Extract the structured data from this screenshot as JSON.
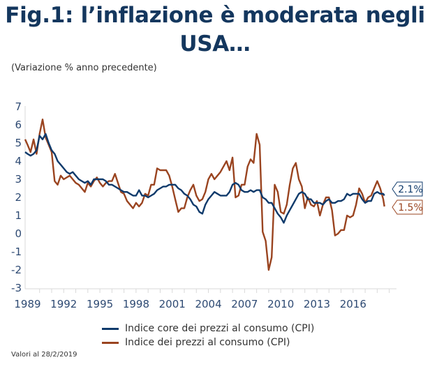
{
  "title": "Fig.1: l’inflazione è moderata negli USA…",
  "subtitle": "(Variazione % anno precedente)",
  "footnote": "Valori al 28/2/2019",
  "colors": {
    "core": "#0f3a6b",
    "cpi": "#9a4420",
    "axis": "#d9d9d9",
    "tick_text": "#2e4a73"
  },
  "chart_data": {
    "type": "line",
    "title": "Fig.1: l’inflazione è moderata negli USA…",
    "ylabel": "(Variazione % anno precedente)",
    "xlabel": "",
    "ylim": [
      -3,
      7
    ],
    "xlim": [
      1989.3,
      2020.1
    ],
    "yticks": [
      "7",
      "6",
      "5",
      "4",
      "3",
      "2",
      "1",
      "0",
      "-1",
      "-2",
      "-3"
    ],
    "ytick_values": [
      7,
      6,
      5,
      4,
      3,
      2,
      1,
      0,
      -1,
      -2,
      -3
    ],
    "xticks": [
      "1989",
      "1992",
      "1995",
      "1998",
      "2001",
      "2004",
      "2007",
      "2010",
      "2013",
      "2016"
    ],
    "xtick_values": [
      1989.5,
      1992.5,
      1995.5,
      1998.5,
      2001.5,
      2004.5,
      2007.5,
      2010.5,
      2013.5,
      2016.5
    ],
    "grid": false,
    "legend_position": "bottom",
    "series": [
      {
        "name": "Indice core dei prezzi al consumo (CPI)",
        "color": "#0f3a6b",
        "end_label": "2.1%",
        "x": [
          1989.3,
          1989.5,
          1989.75,
          1990.0,
          1990.25,
          1990.5,
          1990.75,
          1991.0,
          1991.25,
          1991.5,
          1991.75,
          1992.0,
          1992.25,
          1992.5,
          1992.75,
          1993.0,
          1993.25,
          1993.5,
          1993.75,
          1994.0,
          1994.25,
          1994.5,
          1994.75,
          1995.0,
          1995.25,
          1995.5,
          1995.75,
          1996.0,
          1996.25,
          1996.5,
          1996.75,
          1997.0,
          1997.25,
          1997.5,
          1997.75,
          1998.0,
          1998.25,
          1998.5,
          1998.75,
          1999.0,
          1999.25,
          1999.5,
          1999.75,
          2000.0,
          2000.25,
          2000.5,
          2000.75,
          2001.0,
          2001.25,
          2001.5,
          2001.75,
          2002.0,
          2002.25,
          2002.5,
          2002.75,
          2003.0,
          2003.25,
          2003.5,
          2003.75,
          2004.0,
          2004.25,
          2004.5,
          2004.75,
          2005.0,
          2005.25,
          2005.5,
          2005.75,
          2006.0,
          2006.25,
          2006.5,
          2006.75,
          2007.0,
          2007.25,
          2007.5,
          2007.75,
          2008.0,
          2008.25,
          2008.5,
          2008.75,
          2009.0,
          2009.25,
          2009.5,
          2009.75,
          2010.0,
          2010.25,
          2010.5,
          2010.75,
          2011.0,
          2011.25,
          2011.5,
          2011.75,
          2012.0,
          2012.25,
          2012.5,
          2012.75,
          2013.0,
          2013.25,
          2013.5,
          2013.75,
          2014.0,
          2014.25,
          2014.5,
          2014.75,
          2015.0,
          2015.25,
          2015.5,
          2015.75,
          2016.0,
          2016.25,
          2016.5,
          2016.75,
          2017.0,
          2017.25,
          2017.5,
          2017.75,
          2018.0,
          2018.25,
          2018.5,
          2018.75,
          2019.0,
          2019.1
        ],
        "values": [
          4.5,
          4.4,
          4.3,
          4.4,
          4.6,
          5.4,
          5.2,
          5.5,
          5.0,
          4.6,
          4.4,
          4.0,
          3.8,
          3.6,
          3.4,
          3.3,
          3.4,
          3.2,
          3.0,
          2.9,
          2.8,
          2.9,
          2.7,
          3.0,
          3.0,
          3.0,
          3.0,
          2.9,
          2.7,
          2.7,
          2.6,
          2.5,
          2.4,
          2.3,
          2.3,
          2.2,
          2.1,
          2.1,
          2.4,
          2.1,
          2.1,
          2.0,
          2.1,
          2.2,
          2.4,
          2.5,
          2.6,
          2.6,
          2.7,
          2.7,
          2.7,
          2.5,
          2.4,
          2.2,
          2.1,
          1.9,
          1.6,
          1.5,
          1.2,
          1.1,
          1.6,
          1.9,
          2.1,
          2.3,
          2.2,
          2.1,
          2.1,
          2.1,
          2.3,
          2.7,
          2.8,
          2.7,
          2.4,
          2.3,
          2.3,
          2.4,
          2.3,
          2.4,
          2.4,
          2.0,
          1.9,
          1.7,
          1.7,
          1.4,
          1.1,
          0.9,
          0.6,
          1.0,
          1.3,
          1.6,
          1.9,
          2.2,
          2.3,
          2.2,
          1.9,
          1.9,
          1.7,
          1.7,
          1.7,
          1.6,
          1.8,
          1.9,
          1.7,
          1.7,
          1.8,
          1.8,
          1.9,
          2.2,
          2.1,
          2.2,
          2.2,
          2.2,
          1.9,
          1.7,
          1.8,
          1.8,
          2.2,
          2.3,
          2.2,
          2.2,
          2.1
        ]
      },
      {
        "name": "Indice dei prezzi al consumo (CPI)",
        "color": "#9a4420",
        "end_label": "1.5%",
        "x": [
          1989.3,
          1989.5,
          1989.75,
          1990.0,
          1990.25,
          1990.5,
          1990.75,
          1991.0,
          1991.25,
          1991.5,
          1991.75,
          1992.0,
          1992.25,
          1992.5,
          1992.75,
          1993.0,
          1993.25,
          1993.5,
          1993.75,
          1994.0,
          1994.25,
          1994.5,
          1994.75,
          1995.0,
          1995.25,
          1995.5,
          1995.75,
          1996.0,
          1996.25,
          1996.5,
          1996.75,
          1997.0,
          1997.25,
          1997.5,
          1997.75,
          1998.0,
          1998.25,
          1998.5,
          1998.75,
          1999.0,
          1999.25,
          1999.5,
          1999.75,
          2000.0,
          2000.25,
          2000.5,
          2000.75,
          2001.0,
          2001.25,
          2001.5,
          2001.75,
          2002.0,
          2002.25,
          2002.5,
          2002.75,
          2003.0,
          2003.25,
          2003.5,
          2003.75,
          2004.0,
          2004.25,
          2004.5,
          2004.75,
          2005.0,
          2005.25,
          2005.5,
          2005.75,
          2006.0,
          2006.25,
          2006.5,
          2006.75,
          2007.0,
          2007.25,
          2007.5,
          2007.75,
          2008.0,
          2008.25,
          2008.5,
          2008.75,
          2009.0,
          2009.25,
          2009.5,
          2009.75,
          2010.0,
          2010.25,
          2010.5,
          2010.75,
          2011.0,
          2011.25,
          2011.5,
          2011.75,
          2012.0,
          2012.25,
          2012.5,
          2012.75,
          2013.0,
          2013.25,
          2013.5,
          2013.75,
          2014.0,
          2014.25,
          2014.5,
          2014.75,
          2015.0,
          2015.25,
          2015.5,
          2015.75,
          2016.0,
          2016.25,
          2016.5,
          2016.75,
          2017.0,
          2017.25,
          2017.5,
          2017.75,
          2018.0,
          2018.25,
          2018.5,
          2018.75,
          2019.0,
          2019.1
        ],
        "values": [
          5.2,
          4.9,
          4.5,
          5.2,
          4.4,
          5.5,
          6.3,
          5.3,
          4.9,
          4.5,
          2.9,
          2.7,
          3.2,
          3.0,
          3.1,
          3.2,
          3.0,
          2.8,
          2.7,
          2.5,
          2.3,
          2.8,
          2.6,
          2.9,
          3.1,
          2.8,
          2.6,
          2.8,
          2.9,
          2.9,
          3.3,
          2.8,
          2.3,
          2.2,
          1.8,
          1.6,
          1.4,
          1.7,
          1.5,
          1.7,
          2.2,
          2.1,
          2.7,
          2.7,
          3.6,
          3.5,
          3.5,
          3.5,
          3.2,
          2.6,
          1.9,
          1.2,
          1.4,
          1.4,
          2.0,
          2.4,
          2.7,
          2.1,
          1.8,
          1.9,
          2.3,
          3.0,
          3.3,
          3.0,
          3.2,
          3.4,
          3.7,
          4.0,
          3.5,
          4.2,
          2.0,
          2.1,
          2.7,
          2.7,
          3.7,
          4.1,
          3.9,
          5.5,
          4.9,
          0.1,
          -0.4,
          -2.0,
          -1.3,
          2.7,
          2.3,
          1.2,
          1.1,
          1.6,
          2.7,
          3.6,
          3.9,
          3.0,
          2.6,
          1.4,
          2.0,
          1.6,
          1.5,
          1.8,
          1.0,
          1.6,
          2.0,
          2.0,
          1.3,
          -0.1,
          0.0,
          0.2,
          0.2,
          1.0,
          0.9,
          1.0,
          1.6,
          2.5,
          2.2,
          1.7,
          2.0,
          2.1,
          2.5,
          2.9,
          2.5,
          1.9,
          1.5
        ]
      }
    ]
  }
}
